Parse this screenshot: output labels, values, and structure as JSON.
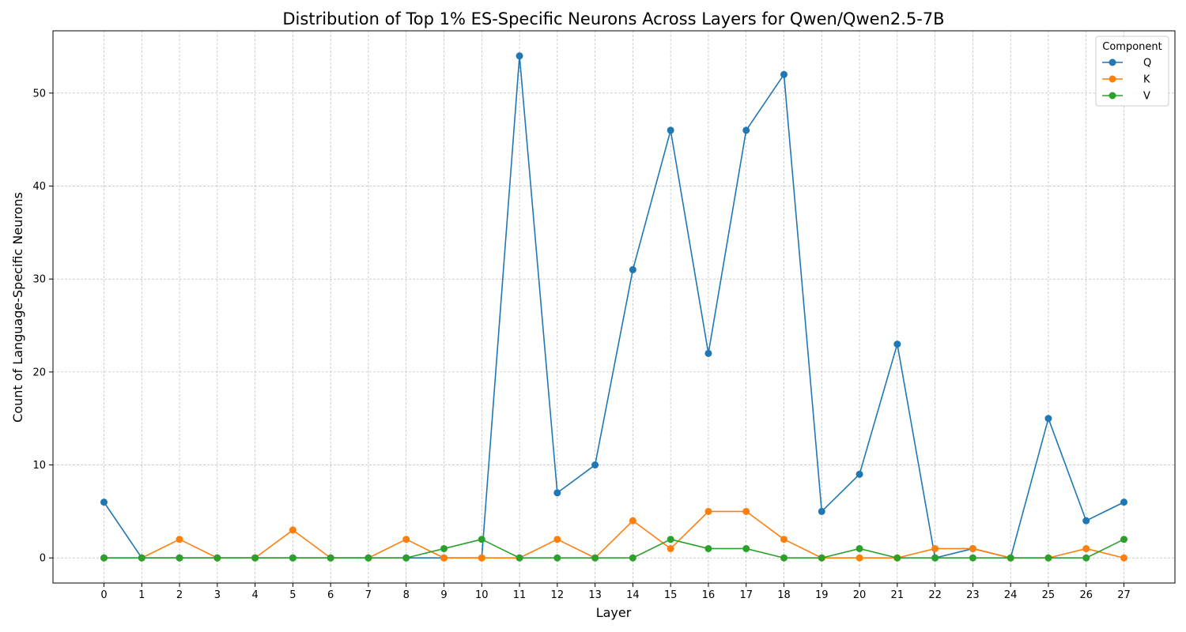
{
  "chart_data": {
    "type": "line",
    "title": "Distribution of Top 1% ES-Specific Neurons Across Layers for Qwen/Qwen2.5-7B",
    "xlabel": "Layer",
    "ylabel": "Count of Language-Specific Neurons",
    "x": [
      0,
      1,
      2,
      3,
      4,
      5,
      6,
      7,
      8,
      9,
      10,
      11,
      12,
      13,
      14,
      15,
      16,
      17,
      18,
      19,
      20,
      21,
      22,
      23,
      24,
      25,
      26,
      27
    ],
    "yticks": [
      0,
      10,
      20,
      30,
      40,
      50
    ],
    "xlim": [
      -1.35,
      28.35
    ],
    "ylim": [
      -2.7,
      56.7
    ],
    "grid": true,
    "legend": {
      "title": "Component",
      "position": "top-right"
    },
    "series": [
      {
        "name": "Q",
        "color": "#1f77b4",
        "values": [
          6,
          0,
          0,
          0,
          0,
          0,
          0,
          0,
          0,
          0,
          0,
          54,
          7,
          10,
          31,
          46,
          22,
          46,
          52,
          5,
          9,
          23,
          0,
          1,
          0,
          15,
          4,
          6
        ]
      },
      {
        "name": "K",
        "color": "#ff7f0e",
        "values": [
          0,
          0,
          2,
          0,
          0,
          3,
          0,
          0,
          2,
          0,
          0,
          0,
          2,
          0,
          4,
          1,
          5,
          5,
          2,
          0,
          0,
          0,
          1,
          1,
          0,
          0,
          1,
          0
        ]
      },
      {
        "name": "V",
        "color": "#2ca02c",
        "values": [
          0,
          0,
          0,
          0,
          0,
          0,
          0,
          0,
          0,
          1,
          2,
          0,
          0,
          0,
          0,
          2,
          1,
          1,
          0,
          0,
          1,
          0,
          0,
          0,
          0,
          0,
          0,
          2
        ]
      }
    ]
  }
}
